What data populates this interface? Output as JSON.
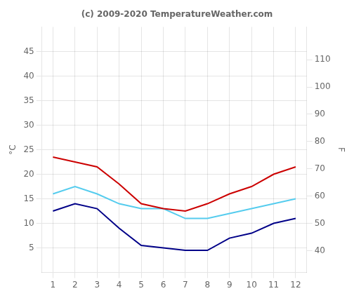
{
  "chart_data": {
    "type": "line",
    "title": "(c) 2009-2020 TemperatureWeather.com",
    "y_label": "°C",
    "y2_label": "F",
    "x": [
      1,
      2,
      3,
      4,
      5,
      6,
      7,
      8,
      9,
      10,
      11,
      12
    ],
    "series": [
      {
        "color": "#cc0000",
        "values": [
          23.5,
          22.5,
          21.5,
          18.0,
          14.0,
          13.0,
          12.5,
          14.0,
          16.0,
          17.5,
          20.0,
          21.5
        ]
      },
      {
        "color": "#55ccee",
        "values": [
          16.0,
          17.5,
          16.0,
          14.0,
          13.0,
          13.0,
          11.0,
          11.0,
          12.0,
          13.0,
          14.0,
          15.0
        ]
      },
      {
        "color": "#000088",
        "values": [
          12.5,
          14.0,
          13.0,
          9.0,
          5.5,
          5.0,
          4.5,
          4.5,
          7.0,
          8.0,
          10.0,
          11.0
        ]
      }
    ],
    "xlim": [
      0.5,
      12.5
    ],
    "xticks": [
      1,
      2,
      3,
      4,
      5,
      6,
      7,
      8,
      9,
      10,
      11,
      12
    ],
    "ylim": [
      0,
      50
    ],
    "yticks": [
      5,
      10,
      15,
      20,
      25,
      30,
      35,
      40,
      45
    ],
    "y2lim": [
      32,
      122
    ],
    "y2ticks": [
      40,
      50,
      60,
      70,
      80,
      90,
      100,
      110
    ],
    "grid": true
  }
}
